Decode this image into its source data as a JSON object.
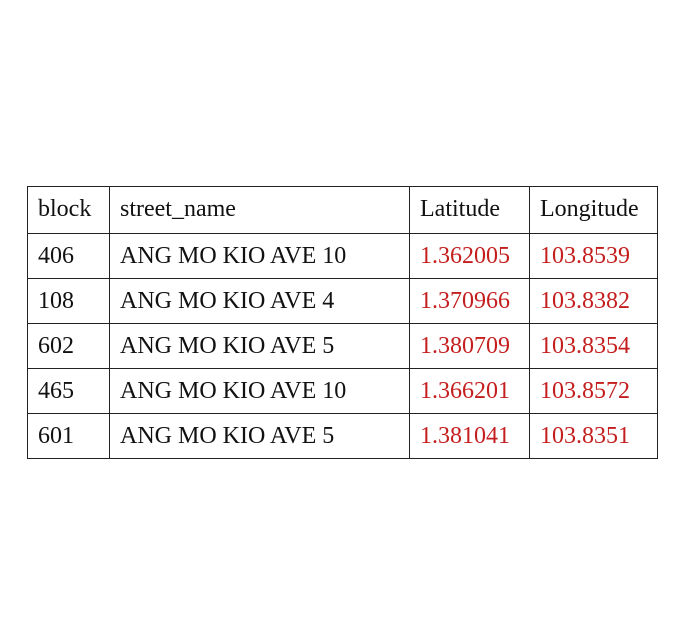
{
  "table": {
    "headers": [
      "block",
      "street_name",
      "Latitude",
      "Longitude"
    ],
    "rows": [
      [
        "406",
        "ANG MO KIO AVE 10",
        "1.362005",
        "103.8539"
      ],
      [
        "108",
        "ANG MO KIO AVE 4",
        "1.370966",
        "103.8382"
      ],
      [
        "602",
        "ANG MO KIO AVE 5",
        "1.380709",
        "103.8354"
      ],
      [
        "465",
        "ANG MO KIO AVE 10",
        "1.366201",
        "103.8572"
      ],
      [
        "601",
        "ANG MO KIO AVE 5",
        "1.381041",
        "103.8351"
      ]
    ]
  },
  "colors": {
    "coordinate_text": "#c41e1e",
    "text": "#111111",
    "border": "#222222",
    "background": "#ffffff"
  }
}
